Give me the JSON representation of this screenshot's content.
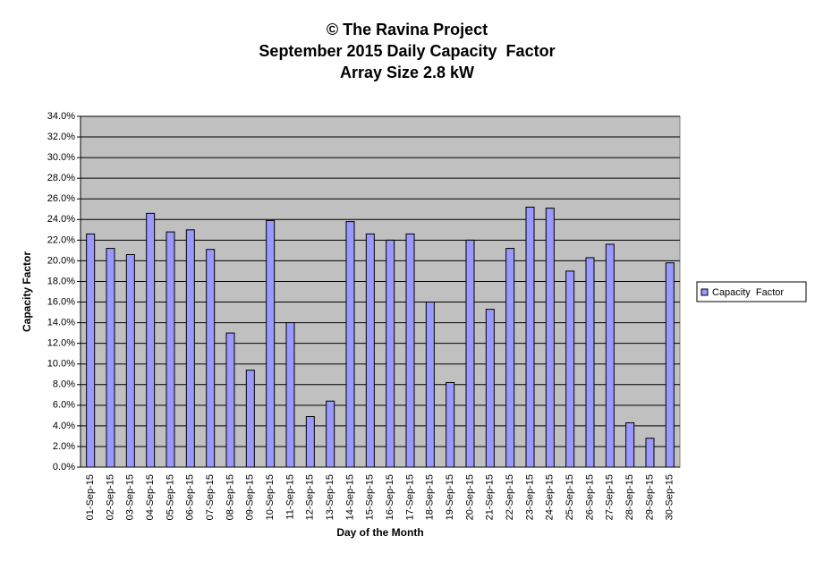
{
  "chart_data": {
    "type": "bar",
    "title": "© The Ravina Project",
    "subtitle": [
      "September 2015 Daily Capacity  Factor",
      "Array Size 2.8 kW"
    ],
    "x_label": "Day of the Month",
    "y_label": "Capacity Factor",
    "categories": [
      "01-Sep-15",
      "02-Sep-15",
      "03-Sep-15",
      "04-Sep-15",
      "05-Sep-15",
      "06-Sep-15",
      "07-Sep-15",
      "08-Sep-15",
      "09-Sep-15",
      "10-Sep-15",
      "11-Sep-15",
      "12-Sep-15",
      "13-Sep-15",
      "14-Sep-15",
      "15-Sep-15",
      "16-Sep-15",
      "17-Sep-15",
      "18-Sep-15",
      "19-Sep-15",
      "20-Sep-15",
      "21-Sep-15",
      "22-Sep-15",
      "23-Sep-15",
      "24-Sep-15",
      "25-Sep-15",
      "26-Sep-15",
      "27-Sep-15",
      "28-Sep-15",
      "29-Sep-15",
      "30-Sep-15"
    ],
    "series": [
      {
        "name": "Capacity  Factor",
        "color": "#9999ff",
        "values": [
          22.6,
          21.2,
          20.6,
          24.6,
          22.8,
          23.0,
          21.1,
          13.0,
          9.4,
          23.9,
          14.0,
          4.9,
          6.4,
          23.8,
          22.6,
          22.0,
          22.6,
          16.0,
          8.2,
          22.0,
          15.3,
          21.2,
          25.2,
          25.1,
          19.0,
          20.3,
          21.6,
          4.3,
          2.8,
          19.8
        ]
      }
    ],
    "ylim": [
      0,
      34
    ],
    "yticks": [
      {
        "value": 0,
        "label": "0.0%"
      },
      {
        "value": 2,
        "label": "2.0%"
      },
      {
        "value": 4,
        "label": "4.0%"
      },
      {
        "value": 6,
        "label": "6.0%"
      },
      {
        "value": 8,
        "label": "8.0%"
      },
      {
        "value": 10,
        "label": "10.0%"
      },
      {
        "value": 12,
        "label": "12.0%"
      },
      {
        "value": 14,
        "label": "14.0%"
      },
      {
        "value": 16,
        "label": "16.0%"
      },
      {
        "value": 18,
        "label": "18.0%"
      },
      {
        "value": 20,
        "label": "20.0%"
      },
      {
        "value": 22,
        "label": "22.0%"
      },
      {
        "value": 24,
        "label": "24.0%"
      },
      {
        "value": 26,
        "label": "26.0%"
      },
      {
        "value": 28,
        "label": "28.0%"
      },
      {
        "value": 30,
        "label": "30.0%"
      },
      {
        "value": 32,
        "label": "32.0%"
      },
      {
        "value": 34,
        "label": "34.0%"
      }
    ],
    "grid": true,
    "legend": "right"
  }
}
